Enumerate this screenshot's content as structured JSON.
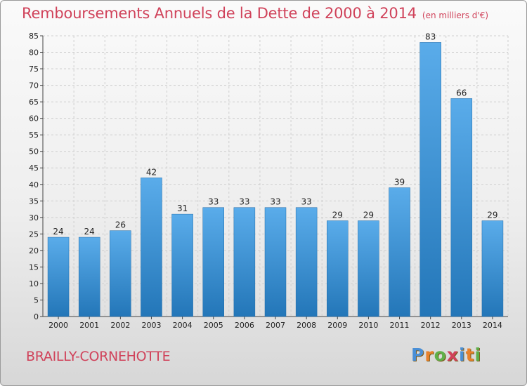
{
  "title": "Remboursements Annuels de la Dette de 2000 à 2014",
  "unit_note": "(en milliers d'€)",
  "commune": "BRAILLY-CORNEHOTTE",
  "logo": {
    "text": "Proxiti",
    "letters": [
      "P",
      "r",
      "o",
      "x",
      "i",
      "t",
      "i"
    ],
    "colors": [
      "#4a8fd6",
      "#e9812a",
      "#5fb04a",
      "#d0425a",
      "#4a8fd6",
      "#e9812a",
      "#5fb04a"
    ]
  },
  "colors": {
    "bar_light": "#5aacea",
    "bar_dark": "#2376b8",
    "accent": "#d0425a",
    "grid": "#cfcfcf"
  },
  "chart_data": {
    "type": "bar",
    "title": "Remboursements Annuels de la Dette de 2000 à 2014",
    "categories": [
      "2000",
      "2001",
      "2002",
      "2003",
      "2004",
      "2005",
      "2006",
      "2007",
      "2008",
      "2009",
      "2010",
      "2011",
      "2012",
      "2013",
      "2014"
    ],
    "values": [
      24,
      24,
      26,
      42,
      31,
      33,
      33,
      33,
      33,
      29,
      29,
      39,
      83,
      66,
      29
    ],
    "ylim": [
      0,
      85
    ],
    "yticks": [
      0,
      5,
      10,
      15,
      20,
      25,
      30,
      35,
      40,
      45,
      50,
      55,
      60,
      65,
      70,
      75,
      80,
      85
    ],
    "grid": true,
    "data_labels": true
  }
}
